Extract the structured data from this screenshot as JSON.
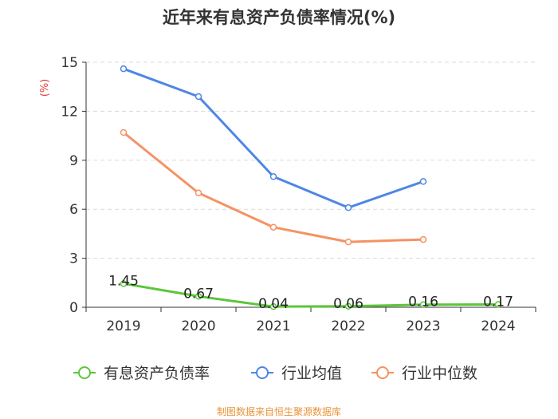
{
  "chart_data": {
    "type": "line",
    "title": "近年来有息资产负债率情况(%)",
    "ylabel": "(%)",
    "xlabel": "",
    "categories": [
      "2019",
      "2020",
      "2021",
      "2022",
      "2023",
      "2024"
    ],
    "ylim": [
      0,
      15
    ],
    "yticks": [
      0,
      3,
      6,
      9,
      12,
      15
    ],
    "grid": true,
    "legend_position": "bottom",
    "series": [
      {
        "name": "有息资产负债率",
        "color": "#5cc63a",
        "values": [
          1.45,
          0.67,
          0.04,
          0.06,
          0.16,
          0.17
        ],
        "labels": [
          "1.45",
          "0.67",
          "0.04",
          "0.06",
          "0.16",
          "0.17"
        ]
      },
      {
        "name": "行业均值",
        "color": "#4e86e4",
        "values": [
          14.6,
          12.9,
          8.0,
          6.1,
          7.7,
          null
        ]
      },
      {
        "name": "行业中位数",
        "color": "#f59263",
        "values": [
          10.7,
          7.0,
          4.9,
          4.0,
          4.15,
          null
        ]
      }
    ]
  },
  "source": {
    "text": "制图数据来自恒生聚源数据库",
    "color": "#e8943a"
  },
  "colors": {
    "title": "#333333",
    "axis_text": "#333333",
    "ylabel": "#e4393c",
    "grid": "#d9d9d9",
    "axis": "#333333"
  }
}
